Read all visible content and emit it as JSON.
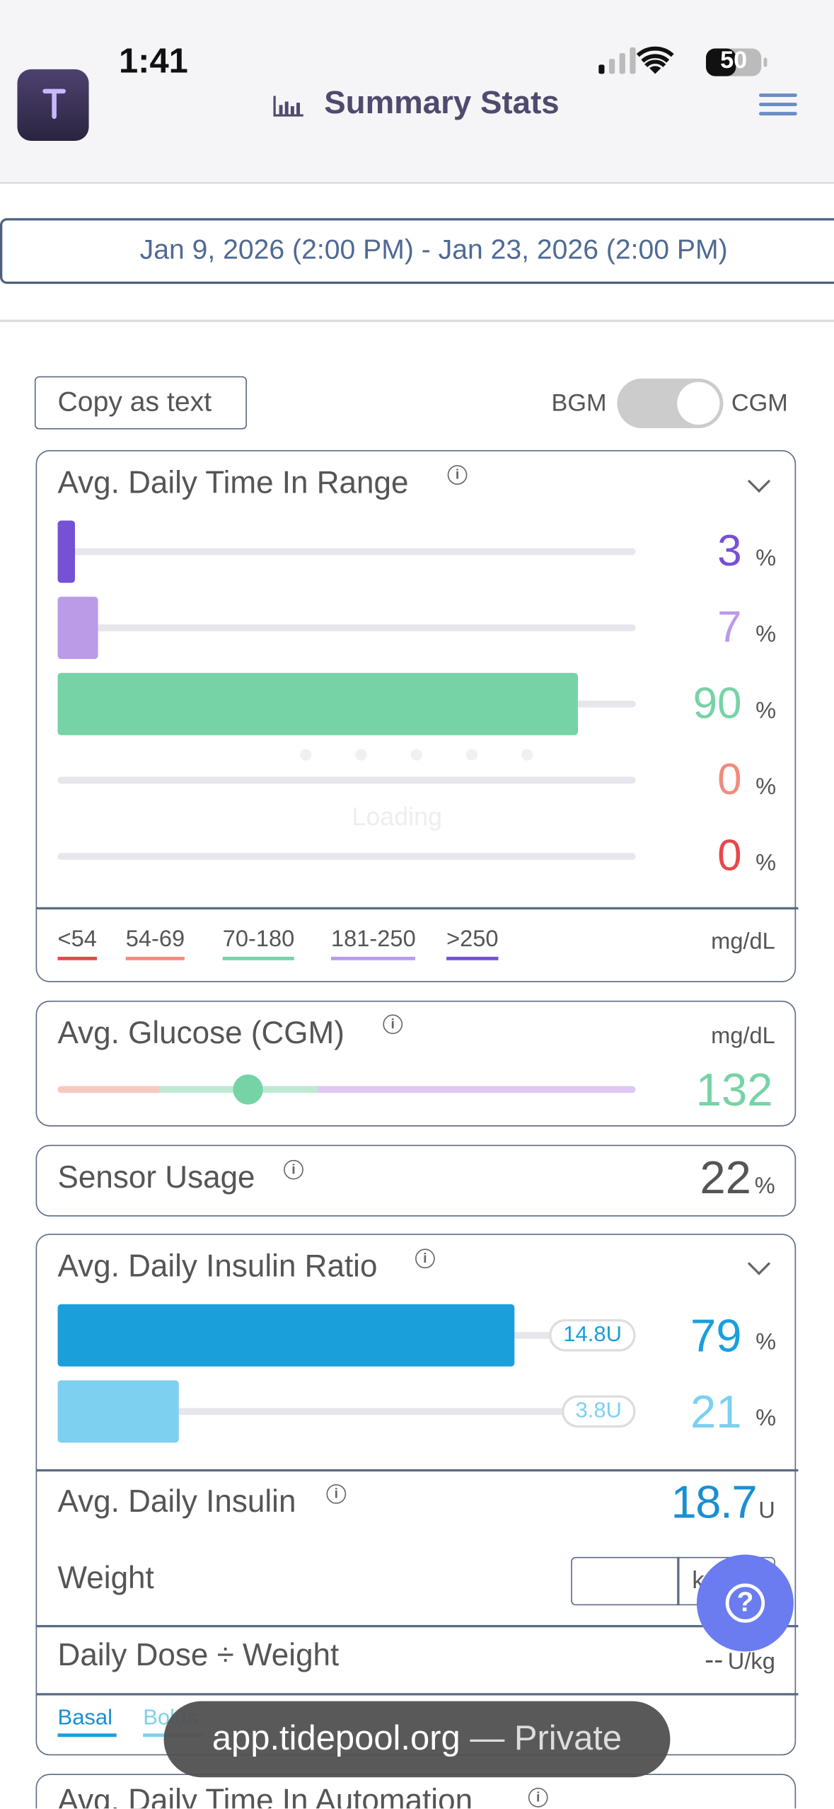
{
  "status_bar": {
    "time": "1:41",
    "battery": "50"
  },
  "header": {
    "title": "Summary Stats"
  },
  "date_range": "Jan 9, 2026 (2:00 PM) - Jan 23, 2026 (2:00 PM)",
  "controls": {
    "copy_button": "Copy as text",
    "toggle_left": "BGM",
    "toggle_right": "CGM"
  },
  "time_in_range": {
    "title": "Avg. Daily Time In Range",
    "rows": [
      {
        "value": 3,
        "unit": "%",
        "color": "#7551d4"
      },
      {
        "value": 7,
        "unit": "%",
        "color": "#bb9ae8"
      },
      {
        "value": 90,
        "unit": "%",
        "color": "#76d3a6"
      },
      {
        "value": 0,
        "unit": "%",
        "color": "#f28b7d"
      },
      {
        "value": 0,
        "unit": "%",
        "color": "#e8474a"
      }
    ],
    "legend": [
      {
        "label": "<54",
        "color": "#e8474a"
      },
      {
        "label": "54-69",
        "color": "#f28b7d"
      },
      {
        "label": "70-180",
        "color": "#76d3a6"
      },
      {
        "label": "181-250",
        "color": "#bb9ae8"
      },
      {
        "label": ">250",
        "color": "#7551d4"
      }
    ],
    "units": "mg/dL",
    "loading": "Loading"
  },
  "avg_glucose": {
    "title": "Avg. Glucose (CGM)",
    "units": "mg/dL",
    "value": 132
  },
  "sensor_usage": {
    "title": "Sensor Usage",
    "value": 22,
    "unit": "%"
  },
  "insulin_ratio": {
    "title": "Avg. Daily Insulin Ratio",
    "rows": [
      {
        "value": 79,
        "unit": "%",
        "label": "14.8U",
        "color": "#1a9fdb"
      },
      {
        "value": 21,
        "unit": "%",
        "label": "3.8U",
        "color": "#7dd0f0"
      }
    ],
    "avg_daily_insulin": {
      "title": "Avg. Daily Insulin",
      "value": 18.7,
      "unit": "U"
    },
    "weight": {
      "label": "Weight",
      "unit": "kg"
    },
    "dose_per_weight": {
      "label": "Daily Dose ÷ Weight",
      "value": "--",
      "unit": "U/kg"
    },
    "tabs": [
      "Basal",
      "Bolus"
    ]
  },
  "next_card": {
    "title": "Avg. Daily Time In Automation"
  },
  "url_bar": {
    "domain": "app.tidepool.org",
    "mode": "— Private"
  }
}
